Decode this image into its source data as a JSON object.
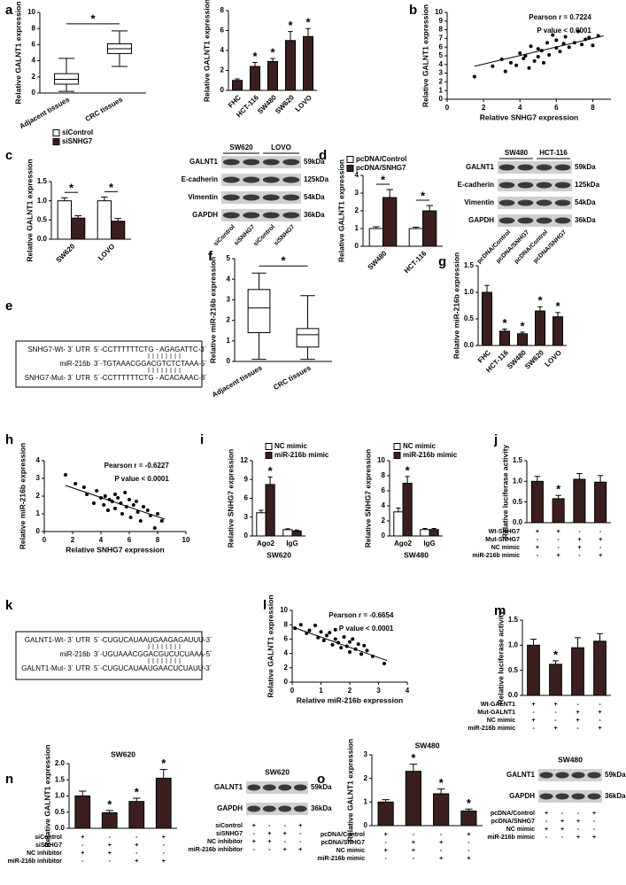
{
  "panel_labels": [
    "a",
    "b",
    "c",
    "d",
    "e",
    "f",
    "g",
    "h",
    "i",
    "j",
    "k",
    "l",
    "m",
    "n",
    "o"
  ],
  "chart_data": [
    {
      "type": "box",
      "ylabel": "Relative GALNT1 expression",
      "categories": [
        "Adjacent tissues",
        "CRC tissues"
      ],
      "boxes": [
        {
          "min": 0.2,
          "q1": 1.1,
          "median": 1.7,
          "q3": 2.4,
          "max": 4.3
        },
        {
          "min": 3.3,
          "q1": 4.9,
          "median": 5.5,
          "q3": 6.1,
          "max": 7.7
        }
      ],
      "color": "#ffffff",
      "ylim": [
        0,
        10
      ],
      "yticks": [
        0,
        2,
        4,
        6,
        8,
        10
      ],
      "significance": "*"
    },
    {
      "type": "bar",
      "ylabel": "Relative GALNT1 expression",
      "categories": [
        "FHC",
        "HCT-116",
        "SW480",
        "SW620",
        "LOVO"
      ],
      "values": [
        1.0,
        2.4,
        2.9,
        5.0,
        5.4
      ],
      "errors": [
        0.15,
        0.4,
        0.3,
        0.9,
        0.8
      ],
      "color": "#3b1e1e",
      "ylim": [
        0,
        8
      ],
      "yticks": [
        0,
        2,
        4,
        6,
        8
      ],
      "significance": [
        null,
        "*",
        "*",
        "*",
        "*"
      ]
    },
    {
      "type": "scatter",
      "ylabel": "Relative GALNT1 expression",
      "xlabel": "Relative SNHG7 expression",
      "annotations": [
        "Pearson r = 0.7224",
        "P value < 0.0001"
      ],
      "x": [
        1.5,
        2.5,
        3.0,
        3.2,
        3.5,
        3.8,
        4.0,
        4.2,
        4.3,
        4.5,
        4.6,
        4.8,
        5.0,
        5.0,
        5.2,
        5.3,
        5.5,
        5.6,
        5.8,
        6.0,
        6.0,
        6.2,
        6.4,
        6.5,
        6.7,
        7.0,
        7.2,
        7.4,
        7.6,
        7.8,
        8.0,
        8.3
      ],
      "y": [
        2.6,
        3.8,
        4.6,
        3.2,
        4.2,
        3.9,
        5.3,
        4.7,
        5.0,
        3.6,
        6.1,
        4.4,
        5.8,
        4.9,
        5.6,
        4.2,
        6.5,
        5.1,
        7.4,
        5.9,
        6.8,
        5.5,
        6.4,
        7.2,
        6.0,
        6.5,
        7.8,
        6.3,
        6.9,
        7.1,
        6.2,
        7.3
      ],
      "fit_line": {
        "x": [
          1.5,
          8.6
        ],
        "y": [
          3.8,
          7.3
        ]
      },
      "color": "#000000",
      "xlim": [
        0,
        9
      ],
      "xticks": [
        0,
        2,
        4,
        6,
        8
      ],
      "ylim": [
        0,
        10
      ],
      "yticks": [
        0,
        1,
        2,
        3,
        4,
        5,
        6,
        7,
        8,
        9,
        10
      ]
    },
    {
      "type": "bar",
      "ylabel": "Relative GALNT1 expression",
      "categories": [
        "SW620",
        "LOVO"
      ],
      "series": [
        {
          "name": "siControl",
          "color": "#ffffff",
          "values": [
            1.0,
            1.0
          ],
          "errors": [
            0.08,
            0.1
          ]
        },
        {
          "name": "siSNHG7",
          "color": "#3b1e1e",
          "values": [
            0.55,
            0.47
          ],
          "errors": [
            0.06,
            0.07
          ]
        }
      ],
      "ylim": [
        0,
        1.5
      ],
      "yticks": [
        {
          "value": 0,
          "label": "0.0"
        },
        0.5,
        {
          "value": 1,
          "label": "1.0"
        },
        1.5
      ],
      "significance": [
        "*",
        "*"
      ],
      "significance_bracket": true
    },
    {
      "type": "bar",
      "ylabel": "Relative GALNT1 expression",
      "categories": [
        "SW480",
        "HCT-116"
      ],
      "series": [
        {
          "name": "pcDNA/Control",
          "color": "#ffffff",
          "values": [
            1.0,
            1.0
          ],
          "errors": [
            0.1,
            0.08
          ]
        },
        {
          "name": "pcDNA/SNHG7",
          "color": "#3b1e1e",
          "values": [
            2.75,
            2.0
          ],
          "errors": [
            0.45,
            0.3
          ]
        }
      ],
      "ylim": [
        0,
        4
      ],
      "yticks": [
        0,
        1,
        2,
        3,
        4
      ],
      "significance": [
        "*",
        "*"
      ],
      "significance_bracket": true
    },
    {
      "type": "box",
      "ylabel": "Relative miR-216b expression",
      "categories": [
        "Adjacent tissues",
        "CRC tissues"
      ],
      "boxes": [
        {
          "min": 0.1,
          "q1": 1.4,
          "median": 2.6,
          "q3": 3.5,
          "max": 4.3
        },
        {
          "min": 0.1,
          "q1": 0.7,
          "median": 1.3,
          "q3": 1.6,
          "max": 3.2
        }
      ],
      "color": "#ffffff",
      "ylim": [
        0,
        5
      ],
      "yticks": [
        0,
        1,
        2,
        3,
        4,
        5
      ],
      "significance": "*"
    },
    {
      "type": "bar",
      "ylabel": "Relative miR-216b expression",
      "categories": [
        "FHC",
        "HCT-116",
        "SW480",
        "SW620",
        "LOVO"
      ],
      "values": [
        1.0,
        0.27,
        0.22,
        0.65,
        0.54
      ],
      "errors": [
        0.13,
        0.04,
        0.03,
        0.08,
        0.08
      ],
      "color": "#3b1e1e",
      "ylim": [
        0,
        1.5
      ],
      "yticks": [
        {
          "value": 0,
          "label": "0.0"
        },
        0.5,
        {
          "value": 1,
          "label": "1.0"
        },
        1.5
      ],
      "significance": [
        null,
        "*",
        "*",
        "*",
        "*"
      ]
    },
    {
      "type": "scatter",
      "ylabel": "Relative miR-216b expression",
      "xlabel": "Relative SNHG7 expression",
      "annotations": [
        "Pearson r = -0.6227",
        "P value < 0.0001"
      ],
      "x": [
        1.5,
        2.2,
        2.8,
        3.0,
        3.5,
        3.7,
        4.0,
        4.2,
        4.3,
        4.5,
        4.6,
        4.8,
        5.0,
        5.0,
        5.2,
        5.4,
        5.5,
        5.7,
        5.8,
        6.0,
        6.1,
        6.3,
        6.5,
        6.6,
        6.8,
        7.0,
        7.3,
        7.5,
        7.8,
        8.0,
        8.3
      ],
      "y": [
        3.2,
        2.7,
        2.5,
        2.1,
        1.6,
        2.3,
        1.9,
        1.5,
        2.0,
        1.2,
        1.8,
        1.7,
        2.1,
        1.3,
        1.9,
        1.6,
        1.0,
        2.2,
        1.4,
        1.8,
        0.8,
        1.5,
        1.7,
        1.1,
        0.6,
        1.4,
        1.2,
        0.9,
        0.2,
        1.0,
        0.6
      ],
      "fit_line": {
        "x": [
          1.5,
          8.5
        ],
        "y": [
          2.6,
          0.7
        ]
      },
      "color": "#000000",
      "xlim": [
        0,
        10
      ],
      "xticks": [
        0,
        2,
        4,
        6,
        8,
        10
      ],
      "ylim": [
        0,
        4
      ],
      "yticks": [
        0,
        1,
        2,
        3,
        4
      ]
    },
    {
      "type": "bar",
      "ylabel": "Relative SNHG7 expression",
      "xlabel": "SW620",
      "categories": [
        "Ago2",
        "IgG"
      ],
      "series": [
        {
          "name": "NC mimic",
          "color": "#ffffff",
          "values": [
            3.7,
            1.0
          ],
          "errors": [
            0.4,
            0.15
          ]
        },
        {
          "name": "miR-216b mimic",
          "color": "#3b1e1e",
          "values": [
            8.2,
            0.8
          ],
          "errors": [
            1.2,
            0.15
          ]
        }
      ],
      "ylim": [
        0,
        12
      ],
      "yticks": [
        0,
        3,
        6,
        9,
        12
      ],
      "significance": [
        "*",
        null
      ]
    },
    {
      "type": "bar",
      "ylabel": "Relative SNHG7 expression",
      "xlabel": "SW480",
      "categories": [
        "Ago2",
        "IgG"
      ],
      "series": [
        {
          "name": "NC mimic",
          "color": "#ffffff",
          "values": [
            3.2,
            0.85
          ],
          "errors": [
            0.5,
            0.15
          ]
        },
        {
          "name": "miR-216b mimic",
          "color": "#3b1e1e",
          "values": [
            7.0,
            0.85
          ],
          "errors": [
            0.9,
            0.15
          ]
        }
      ],
      "ylim": [
        0,
        10
      ],
      "yticks": [
        0,
        2,
        4,
        6,
        8,
        10
      ],
      "significance": [
        "*",
        null
      ]
    },
    {
      "type": "bar",
      "ylabel": "Relative luciferase activity",
      "values": [
        1.0,
        0.58,
        1.05,
        0.98
      ],
      "errors": [
        0.12,
        0.08,
        0.14,
        0.16
      ],
      "color": "#3b1e1e",
      "ylim": [
        0,
        1.5
      ],
      "yticks": [
        {
          "value": 0,
          "label": "0.0"
        },
        0.5,
        {
          "value": 1,
          "label": "1.0"
        },
        1.5
      ],
      "significance": [
        null,
        "*",
        null,
        null
      ],
      "conditions": [
        {
          "label": "Wt-SNHG7",
          "marks": [
            "+",
            "+",
            "-",
            "-"
          ]
        },
        {
          "label": "Mut-SNHG7",
          "marks": [
            "-",
            "-",
            "+",
            "+"
          ]
        },
        {
          "label": "NC mimic",
          "marks": [
            "+",
            "-",
            "+",
            "-"
          ]
        },
        {
          "label": "miR-216b mimic",
          "marks": [
            "-",
            "+",
            "-",
            "+"
          ]
        }
      ]
    },
    {
      "type": "scatter",
      "ylabel": "Relative GALNT1 expression",
      "xlabel": "Relative miR-216b expression",
      "annotations": [
        "Pearson r = -0.6654",
        "P value < 0.0001"
      ],
      "x": [
        0.1,
        0.3,
        0.5,
        0.6,
        0.8,
        0.9,
        1.0,
        1.1,
        1.2,
        1.3,
        1.4,
        1.5,
        1.5,
        1.6,
        1.7,
        1.8,
        1.9,
        2.0,
        2.0,
        2.1,
        2.2,
        2.3,
        2.4,
        2.5,
        2.6,
        2.8,
        3.2
      ],
      "y": [
        7.5,
        8.0,
        6.8,
        7.2,
        7.9,
        6.2,
        7.0,
        5.8,
        6.5,
        6.9,
        5.2,
        6.0,
        7.3,
        5.5,
        4.8,
        6.3,
        5.0,
        5.6,
        4.2,
        6.0,
        4.6,
        5.3,
        3.9,
        5.1,
        4.4,
        3.6,
        2.6
      ],
      "fit_line": {
        "x": [
          0,
          3.3
        ],
        "y": [
          7.7,
          3.0
        ]
      },
      "color": "#000000",
      "xlim": [
        0,
        4
      ],
      "xticks": [
        0,
        1,
        2,
        3,
        4
      ],
      "ylim": [
        0,
        10
      ],
      "yticks": [
        0,
        2,
        4,
        6,
        8,
        10
      ]
    },
    {
      "type": "bar",
      "ylabel": "Relative luciferase activity",
      "values": [
        1.0,
        0.62,
        0.95,
        1.08
      ],
      "errors": [
        0.12,
        0.07,
        0.2,
        0.15
      ],
      "color": "#3b1e1e",
      "ylim": [
        0,
        1.5
      ],
      "yticks": [
        {
          "value": 0,
          "label": "0.0"
        },
        0.5,
        {
          "value": 1,
          "label": "1.0"
        },
        1.5
      ],
      "significance": [
        null,
        "*",
        null,
        null
      ],
      "conditions": [
        {
          "label": "Wt-GALNT1",
          "marks": [
            "+",
            "+",
            "-",
            "-"
          ]
        },
        {
          "label": "Mut-GALNT1",
          "marks": [
            "-",
            "-",
            "+",
            "+"
          ]
        },
        {
          "label": "NC mimic",
          "marks": [
            "+",
            "-",
            "+",
            "-"
          ]
        },
        {
          "label": "miR-216b mimic",
          "marks": [
            "-",
            "+",
            "-",
            "+"
          ]
        }
      ]
    },
    {
      "type": "bar",
      "title": "SW620",
      "ylabel": "Relative GALNT1 expression",
      "values": [
        1.0,
        0.48,
        0.83,
        1.55
      ],
      "errors": [
        0.15,
        0.07,
        0.1,
        0.27
      ],
      "color": "#3b1e1e",
      "ylim": [
        0,
        2
      ],
      "yticks": [
        {
          "value": 0,
          "label": "0.0"
        },
        0.5,
        {
          "value": 1,
          "label": "1.0"
        },
        1.5,
        {
          "value": 2,
          "label": "2.0"
        }
      ],
      "significance": [
        null,
        "*",
        "*",
        "*"
      ],
      "conditions": [
        {
          "label": "siControl",
          "marks": [
            "+",
            "-",
            "-",
            "+"
          ]
        },
        {
          "label": "siSNHG7",
          "marks": [
            "-",
            "+",
            "+",
            "-"
          ]
        },
        {
          "label": "NC inhibitor",
          "marks": [
            "+",
            "+",
            "-",
            "-"
          ]
        },
        {
          "label": "miR-216b inhibitor",
          "marks": [
            "-",
            "-",
            "+",
            "+"
          ]
        }
      ]
    },
    {
      "type": "bar",
      "title": "SW480",
      "ylabel": "Relative GALNT1 expression",
      "values": [
        1.0,
        2.3,
        1.35,
        0.62
      ],
      "errors": [
        0.1,
        0.3,
        0.2,
        0.08
      ],
      "color": "#3b1e1e",
      "ylim": [
        0,
        3
      ],
      "yticks": [
        0,
        1,
        2,
        3
      ],
      "significance": [
        null,
        "*",
        "*",
        "*"
      ],
      "conditions": [
        {
          "label": "pcDNA/Control",
          "marks": [
            "+",
            "-",
            "-",
            "+"
          ]
        },
        {
          "label": "pcDNA/SNHG7",
          "marks": [
            "-",
            "+",
            "+",
            "-"
          ]
        },
        {
          "label": "NC mimic",
          "marks": [
            "+",
            "+",
            "-",
            "-"
          ]
        },
        {
          "label": "miR-216b mimic",
          "marks": [
            "-",
            "-",
            "+",
            "+"
          ]
        }
      ]
    }
  ],
  "blots": [
    {
      "headers": [
        "SW620",
        "LOVO"
      ],
      "rows": [
        "GALNT1",
        "E-cadherin",
        "Vimentin",
        "GAPDH"
      ],
      "sizes": [
        "59kDa",
        "125kDa",
        "54kDa",
        "36kDa"
      ],
      "lanes": [
        "siControl",
        "siSNHG7",
        "siControl",
        "siSNHG7"
      ]
    },
    {
      "headers": [
        "SW480",
        "HCT-116"
      ],
      "rows": [
        "GALNT1",
        "E-cadherin",
        "Vimentin",
        "GAPDH"
      ],
      "sizes": [
        "59kDa",
        "125kDa",
        "54kDa",
        "36kDa"
      ],
      "lanes": [
        "pcDNA/Control",
        "pcDNA/SNHG7",
        "pcDNA/Control",
        "pcDNA/SNHG7"
      ]
    },
    {
      "title": "SW620",
      "rows": [
        "GALNT1",
        "GAPDH"
      ],
      "sizes": [
        "59kDa",
        "36kDa"
      ],
      "conditions": [
        {
          "label": "siControl",
          "marks": [
            "+",
            "-",
            "-",
            "+"
          ]
        },
        {
          "label": "siSNHG7",
          "marks": [
            "-",
            "+",
            "+",
            "-"
          ]
        },
        {
          "label": "NC inhibitor",
          "marks": [
            "+",
            "+",
            "-",
            "-"
          ]
        },
        {
          "label": "miR-216b inhibitor",
          "marks": [
            "-",
            "-",
            "+",
            "+"
          ]
        }
      ]
    },
    {
      "title": "SW480",
      "rows": [
        "GALNT1",
        "GAPDH"
      ],
      "sizes": [
        "59kDa",
        "36kDa"
      ],
      "conditions": [
        {
          "label": "pcDNA/Control",
          "marks": [
            "+",
            "-",
            "-",
            "+"
          ]
        },
        {
          "label": "pcDNA/SNHG7",
          "marks": [
            "-",
            "+",
            "+",
            "-"
          ]
        },
        {
          "label": "NC mimic",
          "marks": [
            "+",
            "+",
            "-",
            "-"
          ]
        },
        {
          "label": "miR-216b mimic",
          "marks": [
            "-",
            "-",
            "+",
            "+"
          ]
        }
      ]
    }
  ],
  "sequences": [
    {
      "rows": [
        {
          "label": "SNHG7-Wt- 3´ UTR",
          "seq": "5´-CCTTTTTTCTG - AGAGATTC-3´"
        },
        {
          "label": "miR-216b",
          "seq": "3´-TGTAAACGGACGTCTCTAAA-5´"
        },
        {
          "label": "SNHG7-Mut- 3´ UTR",
          "seq": "5´-CCTTTTTTCTG - ACACAAAC-3´"
        }
      ]
    },
    {
      "rows": [
        {
          "label": "GALNT1-Wt- 3´ UTR",
          "seq": "5´-CUGUCAUAAUGAAGAGAUUU-3´"
        },
        {
          "label": "miR-216b",
          "seq": "3´-UGUAAACGGACGUCUCUAAA-5´"
        },
        {
          "label": "GALNT1-Mut- 3´ UTR",
          "seq": "5´-CUGUCAUAAUGAACUCUAUU-3´"
        }
      ]
    }
  ]
}
